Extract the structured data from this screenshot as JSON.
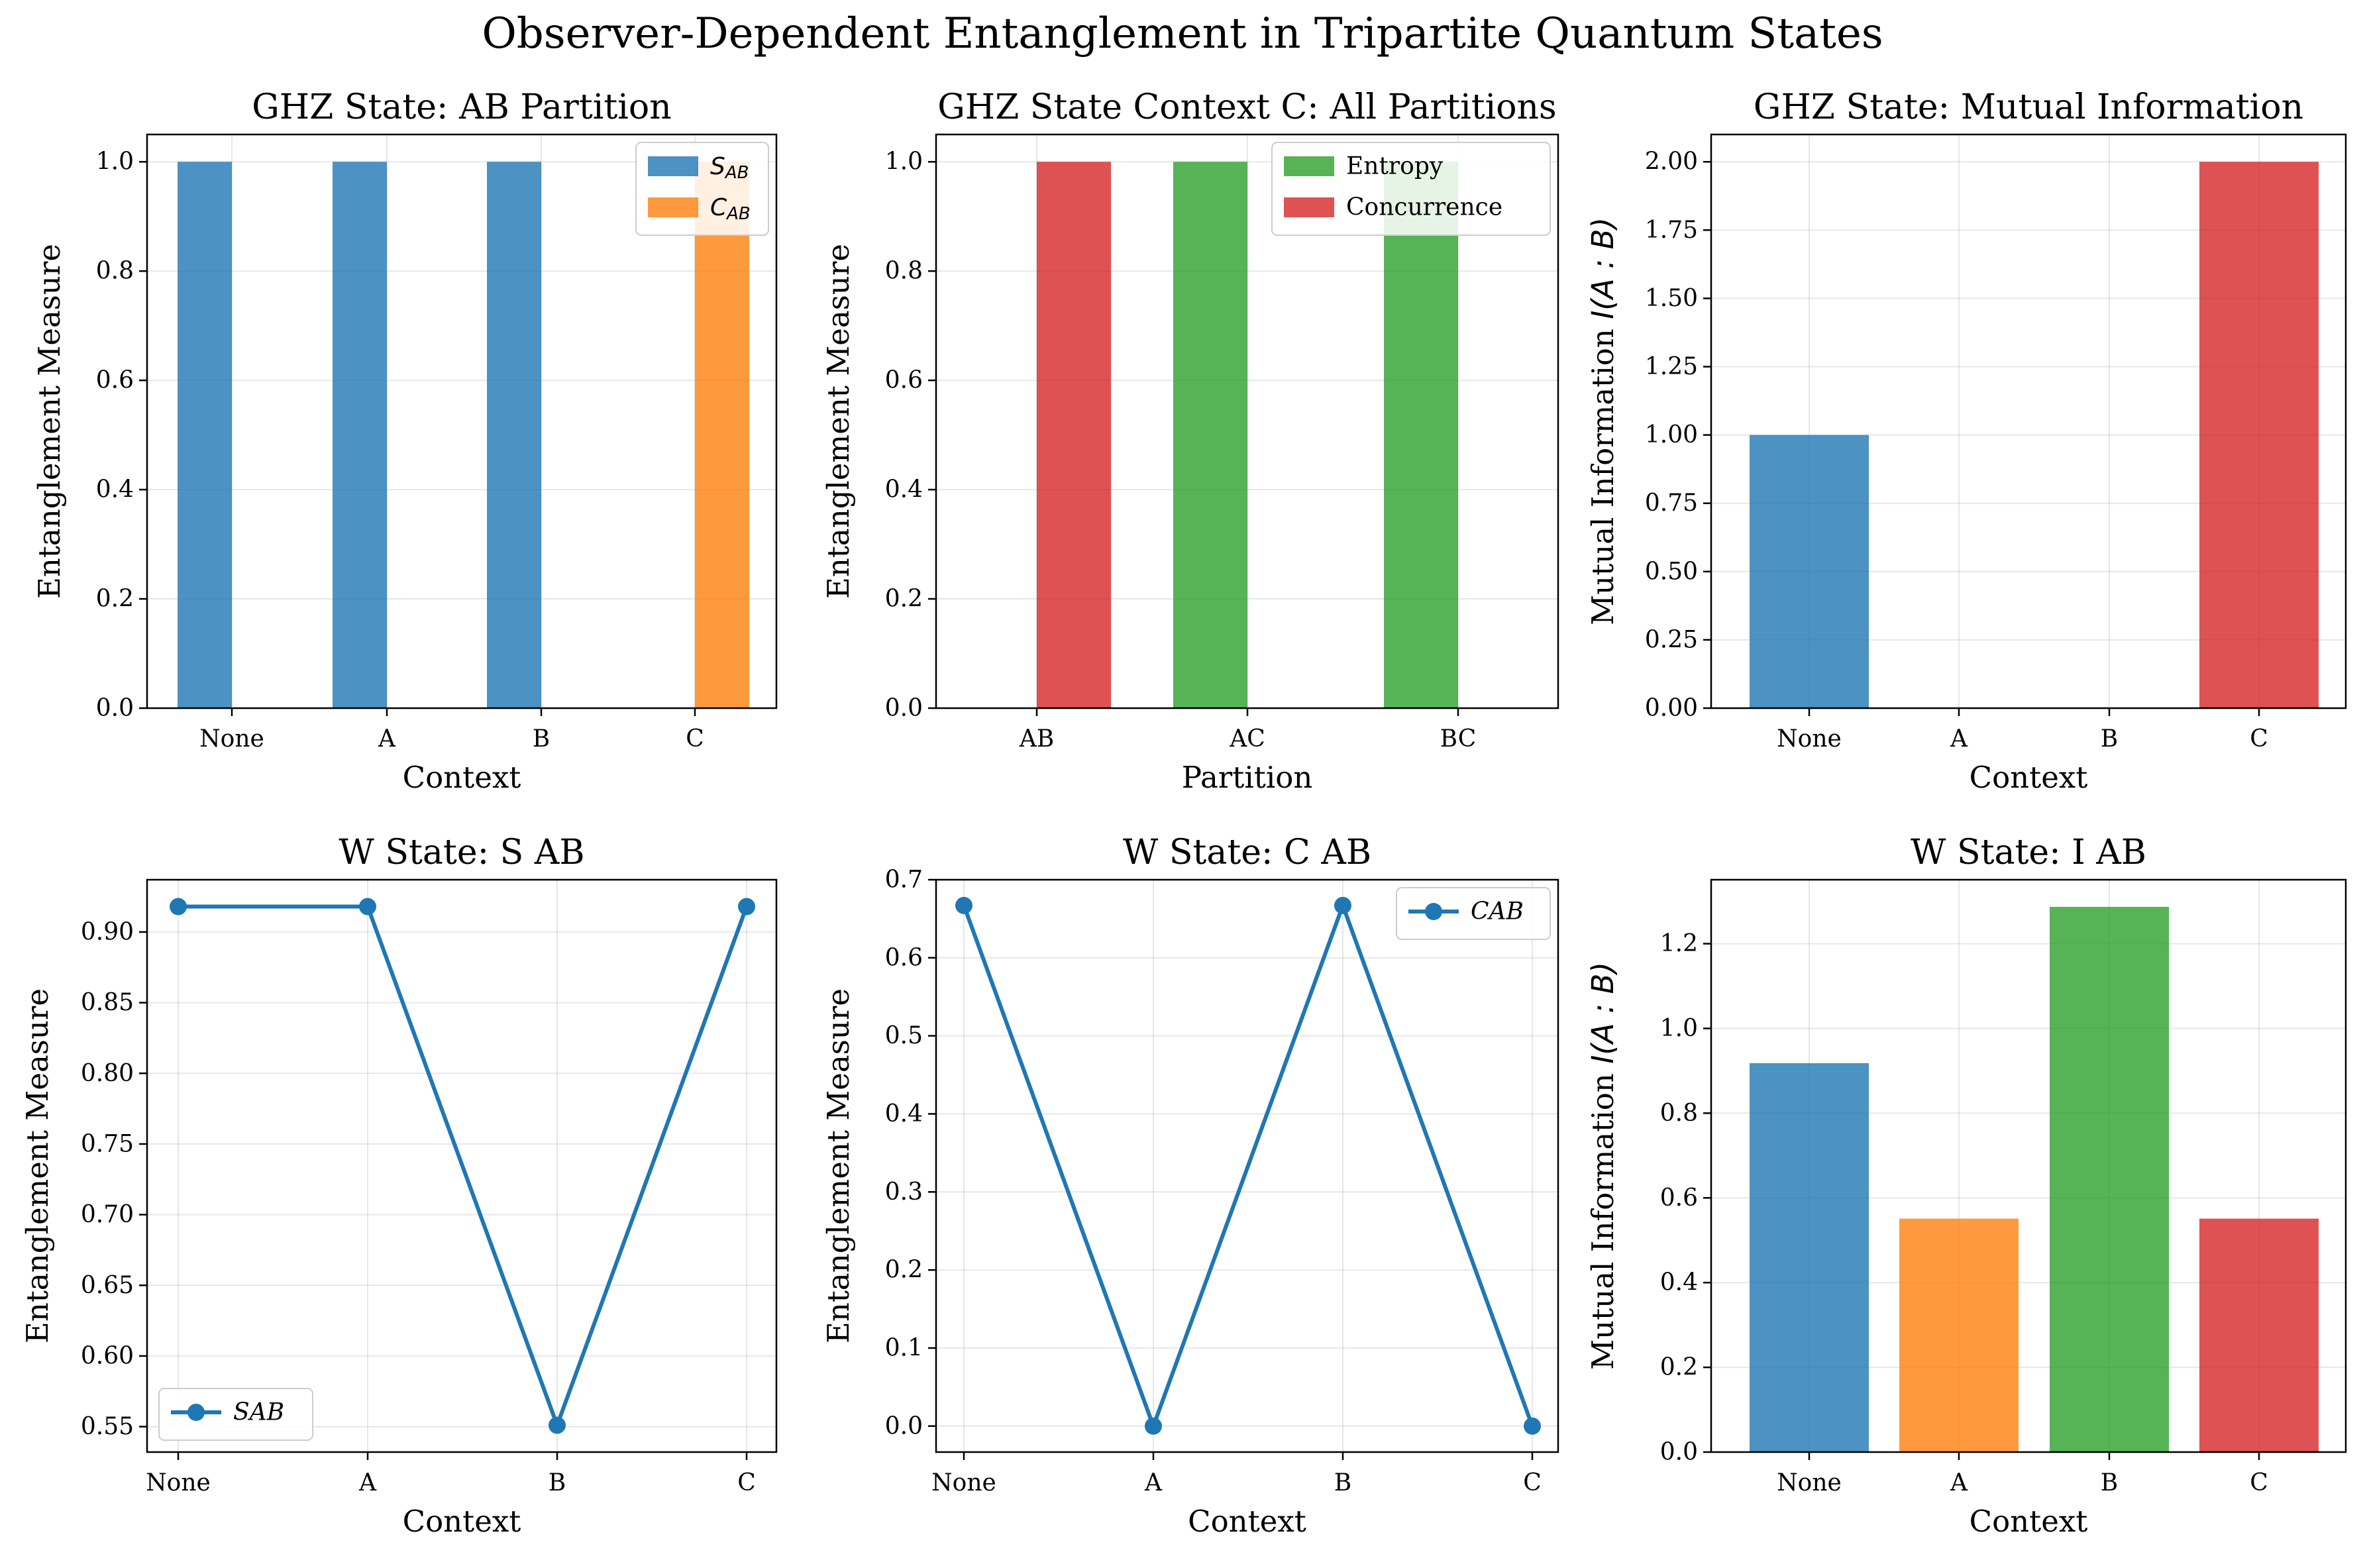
{
  "figure": {
    "title": "Observer-Dependent Entanglement in Tripartite Quantum States"
  },
  "colors": {
    "blue": "#1f77b4",
    "orange": "#ff7f0e",
    "green": "#2ca02c",
    "red": "#d62728"
  },
  "chart_data": [
    {
      "id": "ghz-ab",
      "type": "bar",
      "title": "GHZ State: AB Partition",
      "xlabel": "Context",
      "ylabel": "Entanglement Measure",
      "categories": [
        "None",
        "A",
        "B",
        "C"
      ],
      "series": [
        {
          "name": "S_AB",
          "legend_main": "S",
          "legend_sub": "AB",
          "color": "#1f77b4",
          "values": [
            1.0,
            1.0,
            1.0,
            0.0
          ]
        },
        {
          "name": "C_AB",
          "legend_main": "C",
          "legend_sub": "AB",
          "color": "#ff7f0e",
          "values": [
            0.0,
            0.0,
            0.0,
            1.0
          ]
        }
      ],
      "ylim": [
        0,
        1.05
      ],
      "yticks": [
        0.0,
        0.2,
        0.4,
        0.6,
        0.8,
        1.0
      ],
      "ytick_labels": [
        "0.0",
        "0.2",
        "0.4",
        "0.6",
        "0.8",
        "1.0"
      ],
      "grid": true,
      "legend": "upper right"
    },
    {
      "id": "ghz-c",
      "type": "bar",
      "title": "GHZ State Context C: All Partitions",
      "xlabel": "Partition",
      "ylabel": "Entanglement Measure",
      "categories": [
        "AB",
        "AC",
        "BC"
      ],
      "series": [
        {
          "name": "Entropy",
          "color": "#2ca02c",
          "values": [
            0.0,
            1.0,
            1.0
          ]
        },
        {
          "name": "Concurrence",
          "color": "#d62728",
          "values": [
            1.0,
            0.0,
            0.0
          ]
        }
      ],
      "ylim": [
        0,
        1.05
      ],
      "yticks": [
        0.0,
        0.2,
        0.4,
        0.6,
        0.8,
        1.0
      ],
      "ytick_labels": [
        "0.0",
        "0.2",
        "0.4",
        "0.6",
        "0.8",
        "1.0"
      ],
      "grid": true,
      "legend": "upper right"
    },
    {
      "id": "ghz-mi",
      "type": "bar",
      "title": "GHZ State: Mutual Information",
      "xlabel": "Context",
      "ylabel": "Mutual Information I(A:B)",
      "ylabel_plain": "Mutual Information ",
      "ylabel_math": "I(A : B)",
      "categories": [
        "None",
        "A",
        "B",
        "C"
      ],
      "values": [
        1.0,
        0.0,
        0.0,
        2.0
      ],
      "colors": [
        "#1f77b4",
        "#ff7f0e",
        "#2ca02c",
        "#d62728"
      ],
      "ylim": [
        0,
        2.1
      ],
      "yticks": [
        0.0,
        0.25,
        0.5,
        0.75,
        1.0,
        1.25,
        1.5,
        1.75,
        2.0
      ],
      "ytick_labels": [
        "0.00",
        "0.25",
        "0.50",
        "0.75",
        "1.00",
        "1.25",
        "1.50",
        "1.75",
        "2.00"
      ],
      "grid": true
    },
    {
      "id": "w-sab",
      "type": "line",
      "title": "W State: S AB",
      "xlabel": "Context",
      "ylabel": "Entanglement Measure",
      "categories": [
        "None",
        "A",
        "B",
        "C"
      ],
      "series": [
        {
          "name": "SAB",
          "color": "#1f77b4",
          "values": [
            0.918,
            0.918,
            0.551,
            0.918
          ]
        }
      ],
      "ylim": [
        0.532,
        0.937
      ],
      "yticks": [
        0.55,
        0.6,
        0.65,
        0.7,
        0.75,
        0.8,
        0.85,
        0.9
      ],
      "ytick_labels": [
        "0.55",
        "0.60",
        "0.65",
        "0.70",
        "0.75",
        "0.80",
        "0.85",
        "0.90"
      ],
      "grid": true,
      "legend": "lower left"
    },
    {
      "id": "w-cab",
      "type": "line",
      "title": "W State: C AB",
      "xlabel": "Context",
      "ylabel": "Entanglement Measure",
      "categories": [
        "None",
        "A",
        "B",
        "C"
      ],
      "series": [
        {
          "name": "CAB",
          "color": "#1f77b4",
          "values": [
            0.667,
            0.0,
            0.667,
            0.0
          ]
        }
      ],
      "ylim": [
        -0.0333,
        0.7
      ],
      "yticks": [
        0.0,
        0.1,
        0.2,
        0.3,
        0.4,
        0.5,
        0.6,
        0.7
      ],
      "ytick_labels": [
        "0.0",
        "0.1",
        "0.2",
        "0.3",
        "0.4",
        "0.5",
        "0.6",
        "0.7"
      ],
      "grid": true,
      "legend": "upper right"
    },
    {
      "id": "w-iab",
      "type": "bar",
      "title": "W State: I AB",
      "xlabel": "Context",
      "ylabel": "Mutual Information I(A:B)",
      "ylabel_plain": "Mutual Information ",
      "ylabel_math": "I(A : B)",
      "categories": [
        "None",
        "A",
        "B",
        "C"
      ],
      "values": [
        0.918,
        0.551,
        1.287,
        0.551
      ],
      "colors": [
        "#1f77b4",
        "#ff7f0e",
        "#2ca02c",
        "#d62728"
      ],
      "ylim": [
        0,
        1.351
      ],
      "yticks": [
        0.0,
        0.2,
        0.4,
        0.6,
        0.8,
        1.0,
        1.2
      ],
      "ytick_labels": [
        "0.0",
        "0.2",
        "0.4",
        "0.6",
        "0.8",
        "1.0",
        "1.2"
      ],
      "grid": true
    }
  ]
}
